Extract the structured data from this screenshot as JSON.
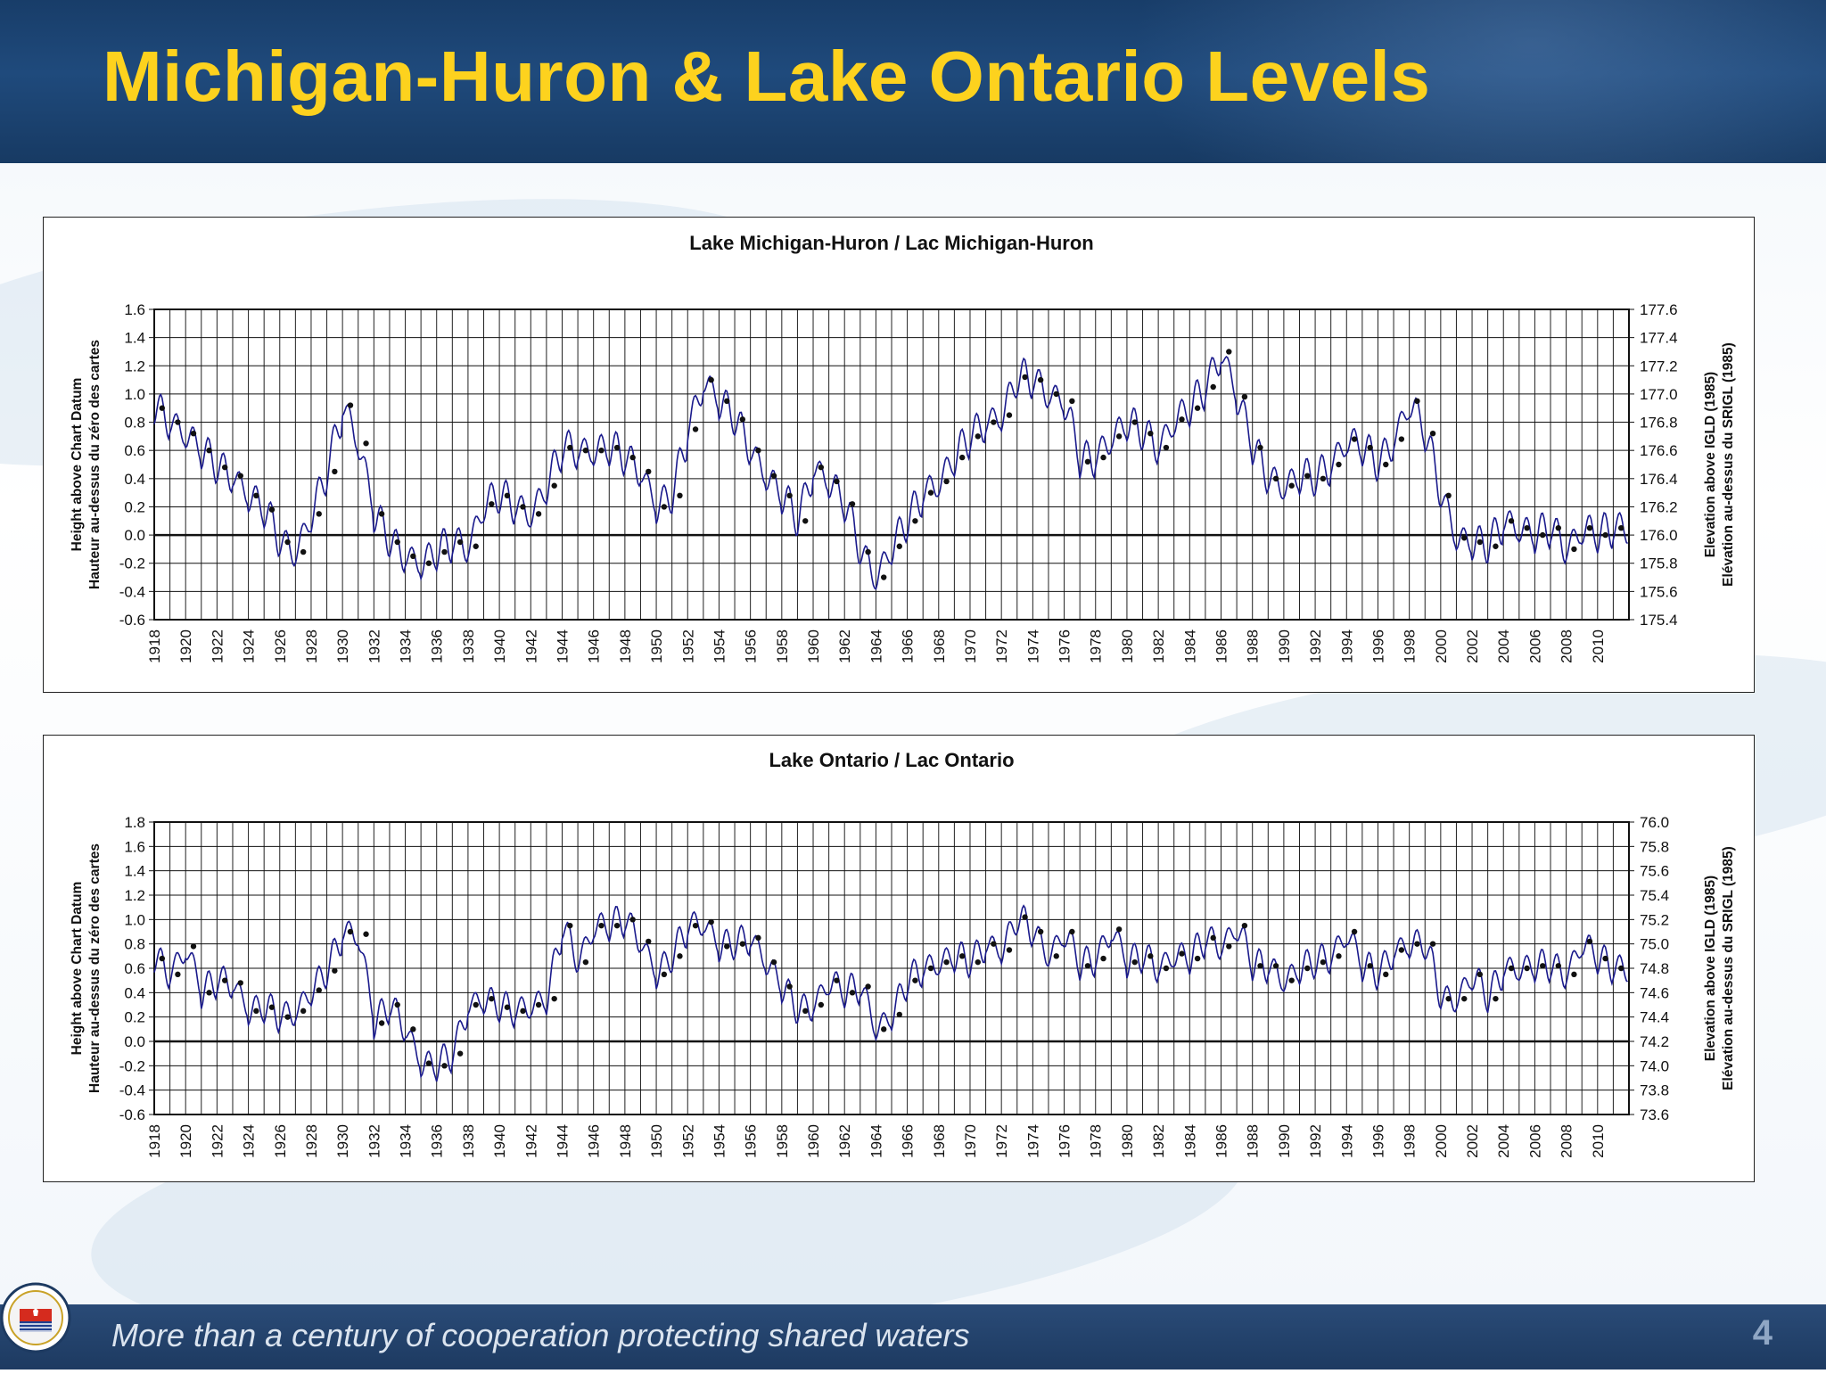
{
  "slide": {
    "title": "Michigan-Huron & Lake Ontario Levels",
    "footer_text": "More than a century of cooperation protecting shared waters",
    "page_number": "4",
    "seal_icon": "ijc-seal-icon",
    "colors": {
      "header_bg": "#1f4a7c",
      "title": "#fdd21e",
      "footer_bg": "#1d3a61",
      "series": "#1a1a8c"
    }
  },
  "chart_data": [
    {
      "type": "line",
      "title": "Lake Michigan-Huron / Lac Michigan-Huron",
      "ylabel_left": [
        "Height above Chart Datum",
        "Hauteur au-dessus du zéro des cartes"
      ],
      "ylabel_right": [
        "Elevation above IGLD (1985)",
        "Elévation au-dessus du SRIGL (1985)"
      ],
      "ylim": [
        -0.6,
        1.6
      ],
      "yticks": [
        "1.6",
        "1.4",
        "1.2",
        "1.0",
        "0.8",
        "0.6",
        "0.4",
        "0.2",
        "0.0",
        "-0.2",
        "-0.4",
        "-0.6"
      ],
      "right_yticks": [
        "177.6",
        "177.4",
        "177.2",
        "177.0",
        "176.8",
        "176.6",
        "176.4",
        "176.2",
        "176.0",
        "175.8",
        "175.6",
        "175.4"
      ],
      "xlim": [
        1918,
        2012
      ],
      "xticks": [
        "1918",
        "1920",
        "1922",
        "1924",
        "1926",
        "1928",
        "1930",
        "1932",
        "1934",
        "1936",
        "1938",
        "1940",
        "1942",
        "1944",
        "1946",
        "1948",
        "1950",
        "1952",
        "1954",
        "1956",
        "1958",
        "1960",
        "1962",
        "1964",
        "1966",
        "1968",
        "1970",
        "1972",
        "1974",
        "1976",
        "1978",
        "1980",
        "1982",
        "1984",
        "1986",
        "1988",
        "1990",
        "1992",
        "1994",
        "1996",
        "1998",
        "2000",
        "2002",
        "2004",
        "2006",
        "2008",
        "2010"
      ],
      "grid": true,
      "series": [
        {
          "kind": "annual mean (dots)",
          "x": [
            1918,
            1919,
            1920,
            1921,
            1922,
            1923,
            1924,
            1925,
            1926,
            1927,
            1928,
            1929,
            1930,
            1931,
            1932,
            1933,
            1934,
            1935,
            1936,
            1937,
            1938,
            1939,
            1940,
            1941,
            1942,
            1943,
            1944,
            1945,
            1946,
            1947,
            1948,
            1949,
            1950,
            1951,
            1952,
            1953,
            1954,
            1955,
            1956,
            1957,
            1958,
            1959,
            1960,
            1961,
            1962,
            1963,
            1964,
            1965,
            1966,
            1967,
            1968,
            1969,
            1970,
            1971,
            1972,
            1973,
            1974,
            1975,
            1976,
            1977,
            1978,
            1979,
            1980,
            1981,
            1982,
            1983,
            1984,
            1985,
            1986,
            1987,
            1988,
            1989,
            1990,
            1991,
            1992,
            1993,
            1994,
            1995,
            1996,
            1997,
            1998,
            1999,
            2000,
            2001,
            2002,
            2003,
            2004,
            2005,
            2006,
            2007,
            2008,
            2009,
            2010,
            2011
          ],
          "values": [
            0.9,
            0.8,
            0.72,
            0.6,
            0.48,
            0.42,
            0.28,
            0.18,
            -0.05,
            -0.12,
            0.15,
            0.45,
            0.92,
            0.65,
            0.15,
            -0.05,
            -0.15,
            -0.2,
            -0.12,
            -0.05,
            -0.08,
            0.22,
            0.28,
            0.2,
            0.15,
            0.35,
            0.62,
            0.6,
            0.6,
            0.62,
            0.55,
            0.45,
            0.2,
            0.28,
            0.75,
            1.1,
            0.95,
            0.82,
            0.6,
            0.42,
            0.28,
            0.1,
            0.48,
            0.38,
            0.22,
            -0.12,
            -0.3,
            -0.08,
            0.1,
            0.3,
            0.38,
            0.55,
            0.7,
            0.8,
            0.85,
            1.12,
            1.1,
            1.0,
            0.95,
            0.52,
            0.55,
            0.7,
            0.8,
            0.72,
            0.62,
            0.82,
            0.9,
            1.05,
            1.3,
            0.98,
            0.62,
            0.4,
            0.35,
            0.42,
            0.4,
            0.5,
            0.68,
            0.62,
            0.5,
            0.68,
            0.95,
            0.72,
            0.28,
            -0.02,
            -0.05,
            -0.08,
            0.1,
            0.05,
            0.0,
            0.05,
            -0.1,
            0.05,
            0.0,
            0.05
          ]
        }
      ]
    },
    {
      "type": "line",
      "title": "Lake Ontario / Lac Ontario",
      "ylabel_left": [
        "Height above Chart Datum",
        "Hauteur au-dessus du zéro des cartes"
      ],
      "ylabel_right": [
        "Elevation above IGLD (1985)",
        "Elévation au-dessus du SRIGL (1985)"
      ],
      "ylim": [
        -0.6,
        1.8
      ],
      "yticks": [
        "1.8",
        "1.6",
        "1.4",
        "1.2",
        "1.0",
        "0.8",
        "0.6",
        "0.4",
        "0.2",
        "0.0",
        "-0.2",
        "-0.4",
        "-0.6"
      ],
      "right_yticks": [
        "76.0",
        "75.8",
        "75.6",
        "75.4",
        "75.2",
        "75.0",
        "74.8",
        "74.6",
        "74.4",
        "74.2",
        "74.0",
        "73.8",
        "73.6"
      ],
      "xlim": [
        1918,
        2012
      ],
      "xticks": [
        "1918",
        "1920",
        "1922",
        "1924",
        "1926",
        "1928",
        "1930",
        "1932",
        "1934",
        "1936",
        "1938",
        "1940",
        "1942",
        "1944",
        "1946",
        "1948",
        "1950",
        "1952",
        "1954",
        "1956",
        "1958",
        "1960",
        "1962",
        "1964",
        "1966",
        "1968",
        "1970",
        "1972",
        "1974",
        "1976",
        "1978",
        "1980",
        "1982",
        "1984",
        "1986",
        "1988",
        "1990",
        "1992",
        "1994",
        "1996",
        "1998",
        "2000",
        "2002",
        "2004",
        "2006",
        "2008",
        "2010"
      ],
      "grid": true,
      "series": [
        {
          "kind": "annual mean (dots)",
          "x": [
            1918,
            1919,
            1920,
            1921,
            1922,
            1923,
            1924,
            1925,
            1926,
            1927,
            1928,
            1929,
            1930,
            1931,
            1932,
            1933,
            1934,
            1935,
            1936,
            1937,
            1938,
            1939,
            1940,
            1941,
            1942,
            1943,
            1944,
            1945,
            1946,
            1947,
            1948,
            1949,
            1950,
            1951,
            1952,
            1953,
            1954,
            1955,
            1956,
            1957,
            1958,
            1959,
            1960,
            1961,
            1962,
            1963,
            1964,
            1965,
            1966,
            1967,
            1968,
            1969,
            1970,
            1971,
            1972,
            1973,
            1974,
            1975,
            1976,
            1977,
            1978,
            1979,
            1980,
            1981,
            1982,
            1983,
            1984,
            1985,
            1986,
            1987,
            1988,
            1989,
            1990,
            1991,
            1992,
            1993,
            1994,
            1995,
            1996,
            1997,
            1998,
            1999,
            2000,
            2001,
            2002,
            2003,
            2004,
            2005,
            2006,
            2007,
            2008,
            2009,
            2010,
            2011
          ],
          "values": [
            0.68,
            0.55,
            0.78,
            0.4,
            0.5,
            0.48,
            0.25,
            0.28,
            0.2,
            0.25,
            0.42,
            0.58,
            0.9,
            0.88,
            0.15,
            0.3,
            0.1,
            -0.18,
            -0.2,
            -0.1,
            0.3,
            0.35,
            0.28,
            0.25,
            0.3,
            0.35,
            0.95,
            0.65,
            0.95,
            0.95,
            1.0,
            0.82,
            0.55,
            0.7,
            0.95,
            0.98,
            0.78,
            0.8,
            0.85,
            0.65,
            0.45,
            0.25,
            0.3,
            0.5,
            0.4,
            0.45,
            0.1,
            0.22,
            0.5,
            0.6,
            0.65,
            0.7,
            0.65,
            0.8,
            0.75,
            1.02,
            0.9,
            0.7,
            0.9,
            0.62,
            0.68,
            0.92,
            0.65,
            0.7,
            0.6,
            0.72,
            0.68,
            0.85,
            0.78,
            0.95,
            0.62,
            0.62,
            0.5,
            0.6,
            0.65,
            0.7,
            0.9,
            0.62,
            0.55,
            0.75,
            0.8,
            0.8,
            0.35,
            0.35,
            0.55,
            0.35,
            0.6,
            0.6,
            0.62,
            0.62,
            0.55,
            0.82,
            0.68,
            0.6
          ]
        }
      ]
    }
  ]
}
